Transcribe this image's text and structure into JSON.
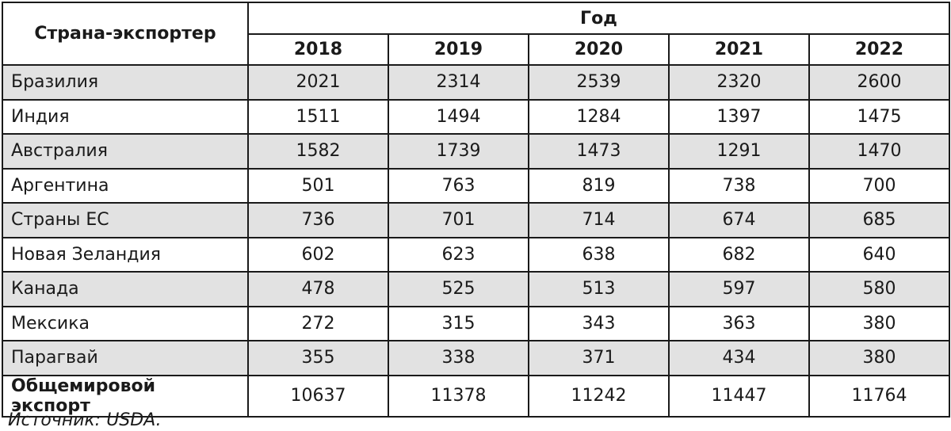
{
  "table": {
    "country_header": "Страна-экспортер",
    "year_header": "Год",
    "years": [
      "2018",
      "2019",
      "2020",
      "2021",
      "2022"
    ],
    "rows": [
      {
        "country": "Бразилия",
        "values": [
          "2021",
          "2314",
          "2539",
          "2320",
          "2600"
        ],
        "shaded": true
      },
      {
        "country": "Индия",
        "values": [
          "1511",
          "1494",
          "1284",
          "1397",
          "1475"
        ],
        "shaded": false
      },
      {
        "country": "Австралия",
        "values": [
          "1582",
          "1739",
          "1473",
          "1291",
          "1470"
        ],
        "shaded": true
      },
      {
        "country": "Аргентина",
        "values": [
          "501",
          "763",
          "819",
          "738",
          "700"
        ],
        "shaded": false
      },
      {
        "country": "Страны ЕС",
        "values": [
          "736",
          "701",
          "714",
          "674",
          "685"
        ],
        "shaded": true
      },
      {
        "country": "Новая Зеландия",
        "values": [
          "602",
          "623",
          "638",
          "682",
          "640"
        ],
        "shaded": false
      },
      {
        "country": "Канада",
        "values": [
          "478",
          "525",
          "513",
          "597",
          "580"
        ],
        "shaded": true
      },
      {
        "country": "Мексика",
        "values": [
          "272",
          "315",
          "343",
          "363",
          "380"
        ],
        "shaded": false
      },
      {
        "country": "Парагвай",
        "values": [
          "355",
          "338",
          "371",
          "434",
          "380"
        ],
        "shaded": true
      }
    ],
    "total": {
      "label": "Общемировой экспорт",
      "values": [
        "10637",
        "11378",
        "11242",
        "11447",
        "11764"
      ]
    }
  },
  "source": "Источник: USDA.",
  "colors": {
    "shade": "#e2e2e2",
    "border": "#1a1a1a"
  }
}
